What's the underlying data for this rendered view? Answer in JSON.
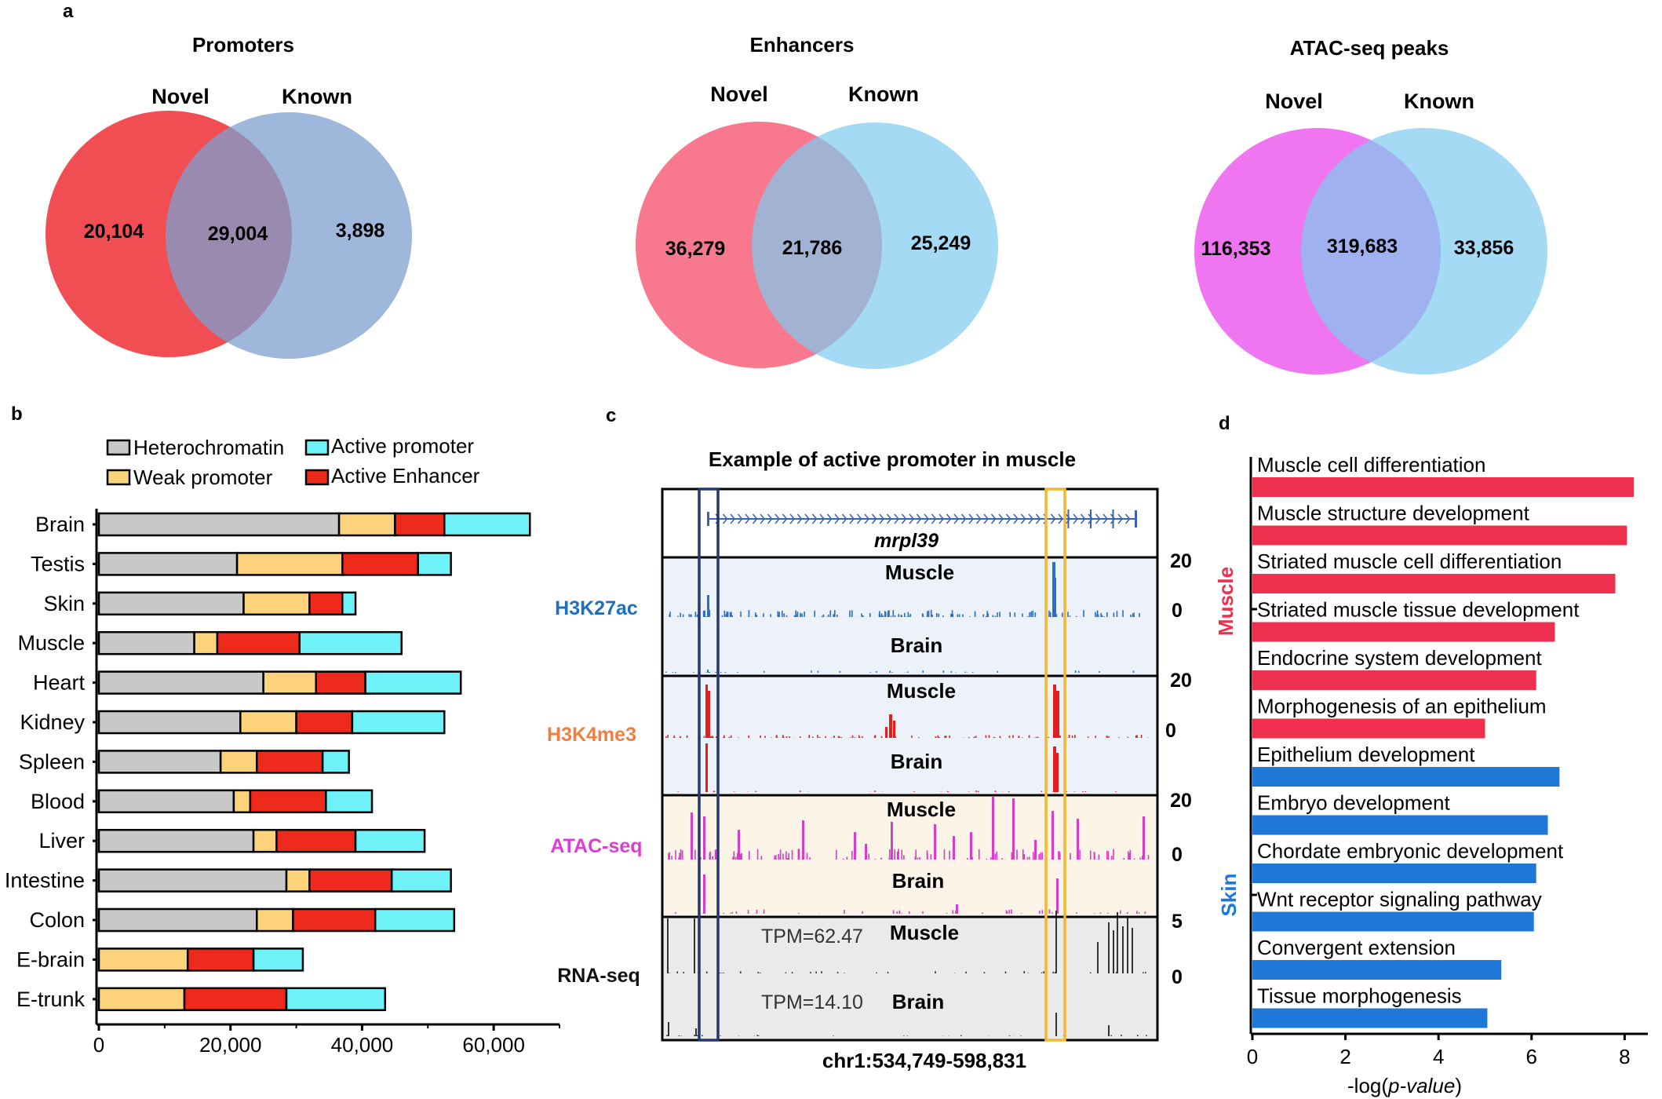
{
  "panel_labels": {
    "a": "a",
    "b": "b",
    "c": "c",
    "d": "d"
  },
  "venn": [
    {
      "title": "Promoters",
      "left": "Novel",
      "right": "Known",
      "novel": "20,104",
      "overlap": "29,004",
      "known": "3,898",
      "colors": {
        "left": "#ee3b3f",
        "right": "#7f9fcf"
      }
    },
    {
      "title": "Enhancers",
      "left": "Novel",
      "right": "Known",
      "novel": "36,279",
      "overlap": "21,786",
      "known": "25,249",
      "colors": {
        "left": "#f7607a",
        "right": "#7ecbf0"
      }
    },
    {
      "title": "ATAC-seq peaks",
      "left": "Novel",
      "right": "Known",
      "novel": "116,353",
      "overlap": "319,683",
      "known": "33,856",
      "colors": {
        "left": "#ee66ee",
        "right": "#7ecbf0"
      }
    }
  ],
  "chart_data": [
    {
      "type": "bar",
      "orientation": "horizontal-stacked",
      "categories": [
        "Brain",
        "Testis",
        "Skin",
        "Muscle",
        "Heart",
        "Kidney",
        "Spleen",
        "Blood",
        "Liver",
        "Intestine",
        "Colon",
        "E-brain",
        "E-trunk"
      ],
      "series": [
        {
          "name": "Heterochromatin",
          "color": "#c8c8c8",
          "values": [
            36500,
            21000,
            22000,
            14500,
            25000,
            21500,
            18500,
            20500,
            23500,
            28500,
            24000,
            0,
            0
          ]
        },
        {
          "name": "Weak promoter",
          "color": "#fcd27a",
          "values": [
            8500,
            16000,
            10000,
            3500,
            8000,
            8500,
            5500,
            2500,
            3500,
            3500,
            5500,
            13500,
            13000
          ]
        },
        {
          "name": "Active Enhancer",
          "color": "#ee2a1c",
          "values": [
            7500,
            11500,
            5000,
            12500,
            7500,
            8500,
            10000,
            11500,
            12000,
            12500,
            12500,
            10000,
            15500
          ]
        },
        {
          "name": "Active promoter",
          "color": "#6ff1f8",
          "values": [
            13000,
            5000,
            2000,
            15500,
            14500,
            14000,
            4000,
            7000,
            10500,
            9000,
            12000,
            7500,
            15000
          ]
        }
      ],
      "xlim": [
        0,
        70000
      ],
      "xticks": [
        "0",
        "20,000",
        "40,000",
        "60,000"
      ],
      "legend": "top"
    },
    {
      "type": "bar",
      "orientation": "horizontal",
      "xlabel_prefix": "-log(",
      "xlabel_italic": "p-value",
      "xlabel_suffix": ")",
      "xlim": [
        0,
        8.5
      ],
      "xticks": [
        "0",
        "2",
        "4",
        "6",
        "8"
      ],
      "groups": [
        {
          "name": "Muscle",
          "color": "#ee2f4e"
        },
        {
          "name": "Skin",
          "color": "#1f78d8"
        }
      ],
      "terms": [
        {
          "label": "Muscle cell differentiation",
          "value": 8.2,
          "group": "Muscle"
        },
        {
          "label": "Muscle structure development",
          "value": 8.05,
          "group": "Muscle"
        },
        {
          "label": "Striated muscle cell differentiation",
          "value": 7.8,
          "group": "Muscle"
        },
        {
          "label": "Striated muscle tissue development",
          "value": 6.5,
          "group": "Muscle"
        },
        {
          "label": "Endocrine system development",
          "value": 6.1,
          "group": "Muscle"
        },
        {
          "label": "Morphogenesis of an epithelium",
          "value": 5.0,
          "group": "Muscle"
        },
        {
          "label": "Epithelium development",
          "value": 6.6,
          "group": "Skin"
        },
        {
          "label": "Embryo development",
          "value": 6.35,
          "group": "Skin"
        },
        {
          "label": "Chordate embryonic development",
          "value": 6.1,
          "group": "Skin"
        },
        {
          "label": "Wnt receptor signaling pathway",
          "value": 6.05,
          "group": "Skin"
        },
        {
          "label": "Convergent extension",
          "value": 5.35,
          "group": "Skin"
        },
        {
          "label": "Tissue morphogenesis",
          "value": 5.05,
          "group": "Skin"
        }
      ]
    }
  ],
  "browser": {
    "title": "Example of active promoter in muscle",
    "gene": "mrpl39",
    "coordinates": "chr1:534,749-598,831",
    "tracks": [
      {
        "name": "H3K27ac",
        "color": "#1f6fbf",
        "top": "Muscle",
        "bottom": "Brain",
        "scale_max": "20",
        "scale_min": "0",
        "bg": "#edf1fa"
      },
      {
        "name": "H3K4me3",
        "color": "#f07f3f",
        "top": "Muscle",
        "bottom": "Brain",
        "scale_max": "20",
        "scale_min": "0",
        "bg": "#edf1fa"
      },
      {
        "name": "ATAC-seq",
        "color": "#e23bd2",
        "top": "Muscle",
        "bottom": "Brain",
        "scale_max": "20",
        "scale_min": "0",
        "bg": "#fdf4e8"
      },
      {
        "name": "RNA-seq",
        "color": "#111111",
        "top": "Muscle",
        "bottom": "Brain",
        "scale_max": "5",
        "scale_min": "0",
        "bg": "#eaeaea",
        "tpm_top": "TPM=62.47",
        "tpm_bottom": "TPM=14.10"
      }
    ]
  }
}
